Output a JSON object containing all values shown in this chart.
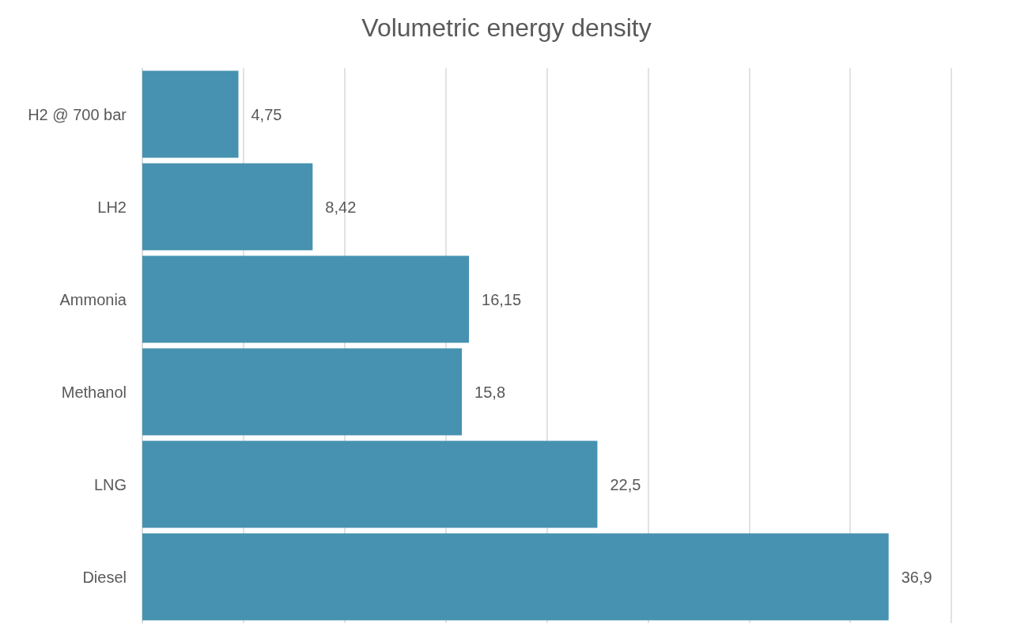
{
  "chart_data": {
    "type": "bar",
    "orientation": "horizontal",
    "title": "Volumetric energy density",
    "categories": [
      "H2 @ 700 bar",
      "LH2",
      "Ammonia",
      "Methanol",
      "LNG",
      "Diesel"
    ],
    "values": [
      4.75,
      8.42,
      16.15,
      15.8,
      22.5,
      36.9
    ],
    "value_labels": [
      "4,75",
      "8,42",
      "16,15",
      "15,8",
      "22,5",
      "36,9"
    ],
    "color": "#4692b0",
    "xlim": [
      0,
      40
    ],
    "xticks": [
      0,
      5,
      10,
      15,
      20,
      25,
      30,
      35,
      40
    ],
    "tick_labels": "y",
    "grid": "x"
  }
}
